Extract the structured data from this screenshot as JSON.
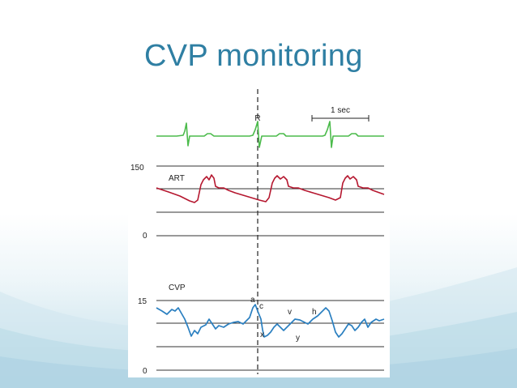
{
  "slide": {
    "title": "CVP monitoring"
  },
  "figure": {
    "ecg_marker": "R",
    "time_scale": "1 sec",
    "art": {
      "label": "ART",
      "scale_top": "150",
      "scale_bottom": "0"
    },
    "cvp": {
      "label": "CVP",
      "scale_top": "15",
      "scale_bottom": "0",
      "wave_labels": {
        "a": "a",
        "c": "c",
        "v": "v",
        "h": "h",
        "x": "x",
        "y": "y"
      }
    }
  },
  "colors": {
    "title": "#2f7fa3",
    "ecg": "#4cbb4c",
    "art": "#b5172f",
    "cvp": "#2a7fc0",
    "grid": "#333333",
    "background_wave": "#bcdce8"
  }
}
